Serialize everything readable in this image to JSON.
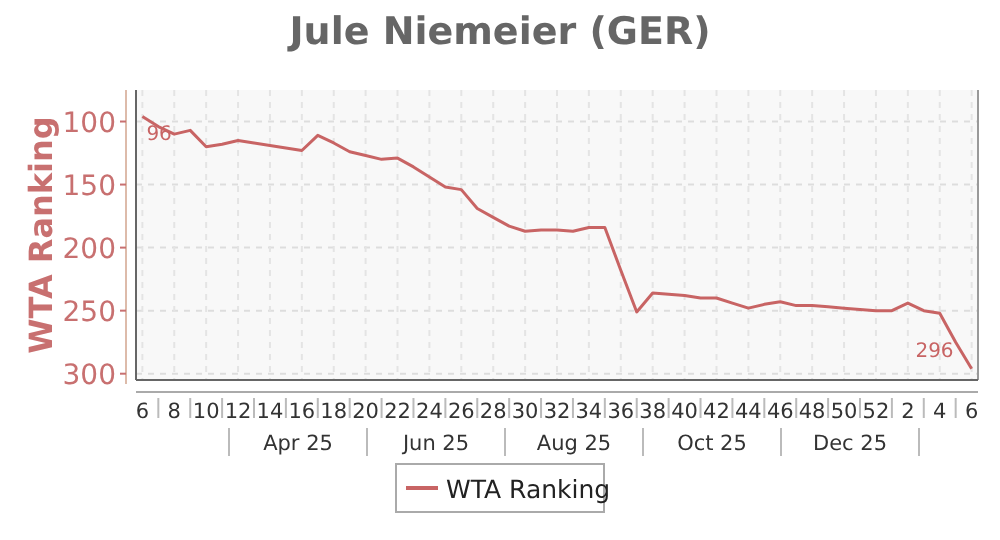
{
  "chart_data": {
    "type": "line",
    "title": "Jule Niemeier (GER)",
    "ylabel": "WTA Ranking",
    "categories": [
      "6",
      null,
      "8",
      null,
      "10",
      null,
      "12",
      null,
      "14",
      null,
      "16",
      null,
      "18",
      null,
      "20",
      null,
      "22",
      null,
      "24",
      null,
      "26",
      null,
      "28",
      null,
      "30",
      null,
      "32",
      null,
      "34",
      null,
      "36",
      null,
      "38",
      null,
      "40",
      null,
      "42",
      null,
      "44",
      null,
      "46",
      null,
      "48",
      null,
      "50",
      null,
      "52",
      null,
      "2",
      null,
      "4",
      null,
      "6"
    ],
    "series": [
      {
        "name": "WTA Ranking",
        "color": "#c86464",
        "values": [
          96,
          104,
          110,
          107,
          120,
          118,
          115,
          117,
          119,
          121,
          123,
          111,
          117,
          124,
          127,
          130,
          129,
          136,
          144,
          152,
          154,
          169,
          176,
          183,
          187,
          186,
          186,
          187,
          184,
          184,
          218,
          251,
          236,
          237,
          238,
          240,
          240,
          244,
          248,
          245,
          243,
          246,
          246,
          247,
          248,
          249,
          250,
          250,
          244,
          250,
          252,
          275,
          296
        ],
        "value_labels": [
          "96",
          null,
          null,
          null,
          null,
          null,
          null,
          null,
          null,
          null,
          null,
          null,
          null,
          null,
          null,
          null,
          null,
          null,
          null,
          null,
          null,
          null,
          null,
          null,
          null,
          null,
          null,
          null,
          null,
          null,
          null,
          null,
          null,
          null,
          null,
          null,
          null,
          null,
          null,
          null,
          null,
          null,
          null,
          null,
          null,
          null,
          null,
          null,
          null,
          null,
          null,
          null,
          "296"
        ]
      }
    ],
    "ylim": [
      305,
      75
    ],
    "yticks": [
      100,
      150,
      200,
      250,
      300
    ],
    "annotations": [
      "Apr 25",
      "Jun 25",
      "Aug 25",
      "Oct 25",
      "Dec 25"
    ],
    "grid": true,
    "legend": "bottom",
    "marker": "none",
    "line_style": "solid"
  }
}
